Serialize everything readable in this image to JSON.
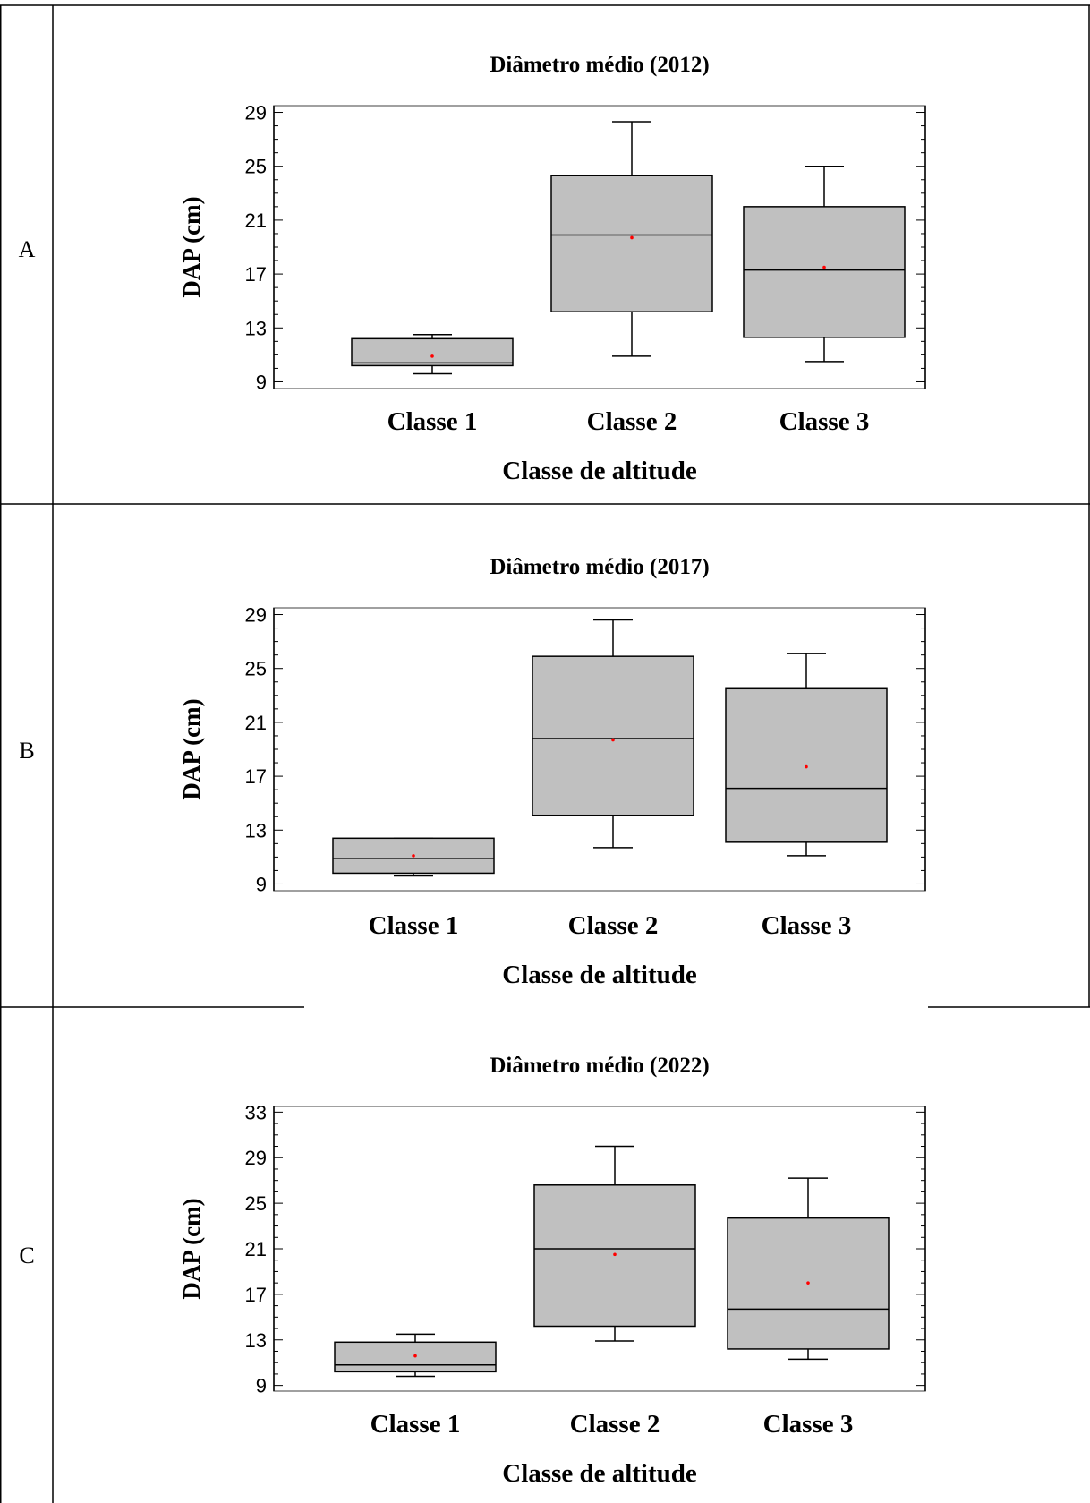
{
  "panels": [
    {
      "label": "A"
    },
    {
      "label": "B"
    },
    {
      "label": "C"
    }
  ],
  "colors": {
    "box_fill": "#c0c0c0",
    "line": "#000000",
    "mean_marker": "#ff0000",
    "frame": "#808080"
  },
  "chart_data": [
    {
      "type": "box",
      "title": "Diâmetro médio (2012)",
      "xlabel": "Classe de altitude",
      "ylabel": "DAP (cm)",
      "categories": [
        "Classe 1",
        "Classe 2",
        "Classe 3"
      ],
      "yticks": [
        9,
        13,
        17,
        21,
        25,
        29
      ],
      "ylim": [
        8.5,
        29.5
      ],
      "boxes": [
        {
          "min": 9.6,
          "q1": 10.2,
          "median": 10.4,
          "q3": 12.2,
          "max": 12.5,
          "mean": 10.9
        },
        {
          "min": 10.9,
          "q1": 14.2,
          "median": 19.9,
          "q3": 24.3,
          "max": 28.3,
          "mean": 19.7
        },
        {
          "min": 10.5,
          "q1": 12.3,
          "median": 17.3,
          "q3": 22.0,
          "max": 25.0,
          "mean": 17.5
        }
      ]
    },
    {
      "type": "box",
      "title": "Diâmetro médio (2017)",
      "xlabel": "Classe de altitude",
      "ylabel": "DAP (cm)",
      "categories": [
        "Classe 1",
        "Classe 2",
        "Classe 3"
      ],
      "yticks": [
        9,
        13,
        17,
        21,
        25,
        29
      ],
      "ylim": [
        8.5,
        29.5
      ],
      "boxes": [
        {
          "min": 9.6,
          "q1": 9.8,
          "median": 10.9,
          "q3": 12.4,
          "max": 12.4,
          "mean": 11.1
        },
        {
          "min": 11.7,
          "q1": 14.1,
          "median": 19.8,
          "q3": 25.9,
          "max": 28.6,
          "mean": 19.7
        },
        {
          "min": 11.1,
          "q1": 12.1,
          "median": 16.1,
          "q3": 23.5,
          "max": 26.1,
          "mean": 17.7
        }
      ]
    },
    {
      "type": "box",
      "title": "Diâmetro médio (2022)",
      "xlabel": "Classe de altitude",
      "ylabel": "DAP (cm)",
      "categories": [
        "Classe 1",
        "Classe 2",
        "Classe 3"
      ],
      "yticks": [
        9,
        13,
        17,
        21,
        25,
        29,
        33
      ],
      "ylim": [
        8.5,
        33.5
      ],
      "boxes": [
        {
          "min": 9.8,
          "q1": 10.2,
          "median": 10.8,
          "q3": 12.8,
          "max": 13.5,
          "mean": 11.6
        },
        {
          "min": 12.9,
          "q1": 14.2,
          "median": 21.0,
          "q3": 26.6,
          "max": 30.0,
          "mean": 20.5
        },
        {
          "min": 11.3,
          "q1": 12.2,
          "median": 15.7,
          "q3": 23.7,
          "max": 27.2,
          "mean": 18.0
        }
      ]
    }
  ]
}
